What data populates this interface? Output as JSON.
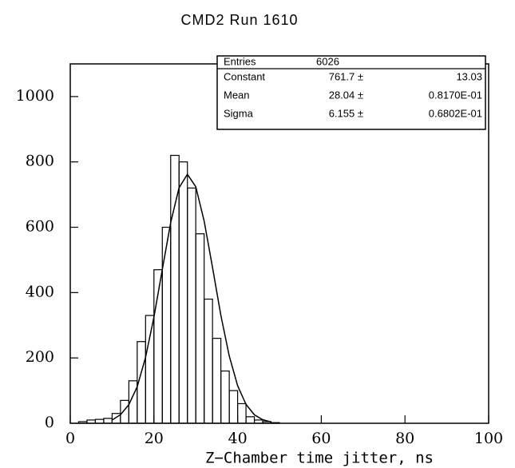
{
  "chart_data": {
    "type": "histogram",
    "title": "CMD2  Run 1610",
    "xlabel": "Z−Chamber time jitter, ns",
    "bins": [
      0,
      2,
      4,
      6,
      8,
      10,
      12,
      14,
      16,
      18,
      20,
      22,
      24,
      26,
      28,
      30,
      32,
      34,
      36,
      38,
      40,
      42,
      44,
      46,
      48,
      50
    ],
    "values": [
      0,
      5,
      10,
      12,
      15,
      30,
      70,
      130,
      250,
      330,
      470,
      600,
      820,
      800,
      720,
      580,
      380,
      260,
      160,
      100,
      60,
      20,
      10,
      5,
      2
    ],
    "color": "#000000",
    "fit": {
      "x": [
        10,
        12,
        14,
        16,
        18,
        20,
        22,
        24,
        26,
        28,
        30,
        32,
        34,
        36,
        38,
        40,
        42,
        44,
        46,
        48
      ],
      "values": [
        10,
        26,
        57,
        112,
        202,
        325,
        471,
        614,
        721,
        762,
        724,
        619,
        477,
        330,
        206,
        115,
        58,
        26,
        11,
        4
      ]
    },
    "xlim": [
      0,
      100
    ],
    "ylim": [
      0,
      1100
    ],
    "xticks": [
      0,
      20,
      40,
      60,
      80,
      100
    ],
    "yticks": [
      0,
      200,
      400,
      600,
      800,
      1000
    ],
    "stats": {
      "rows": [
        [
          "Entries",
          "6026"
        ],
        [
          "Constant",
          "761.7 ±",
          "13.03"
        ],
        [
          "Mean",
          "28.04 ±",
          "0.8170E-01"
        ],
        [
          "Sigma",
          "6.155 ±",
          "0.6802E-01"
        ]
      ]
    }
  }
}
